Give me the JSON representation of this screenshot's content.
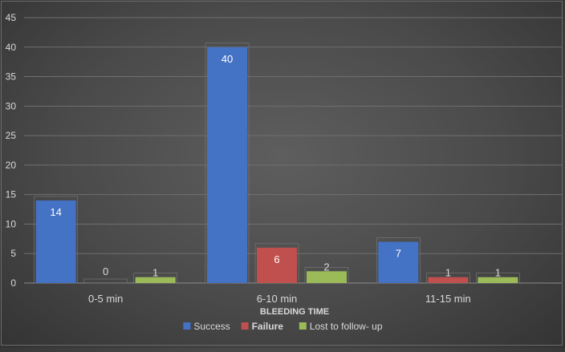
{
  "chart_data": {
    "type": "bar",
    "title": "",
    "xlabel": "BLEEDING TIME",
    "ylabel": "",
    "categories": [
      "0-5 min",
      "6-10 min",
      "11-15 min"
    ],
    "series": [
      {
        "name": "Success",
        "values": [
          14,
          40,
          7
        ],
        "color": "#4472c4"
      },
      {
        "name": "Failure",
        "values": [
          0,
          6,
          1
        ],
        "color": "#c0504d"
      },
      {
        "name": "Lost to follow- up",
        "values": [
          1,
          2,
          1
        ],
        "color": "#9bbb59"
      }
    ],
    "ylim": [
      0,
      45
    ],
    "yticks": [
      0,
      5,
      10,
      15,
      20,
      25,
      30,
      35,
      40,
      45
    ],
    "grid": true,
    "legend": "bottom",
    "data_labels": true
  },
  "colors": {
    "gridline": "#6f6f6f",
    "text": "#d9d9d9",
    "label_text": "#ffffff"
  }
}
